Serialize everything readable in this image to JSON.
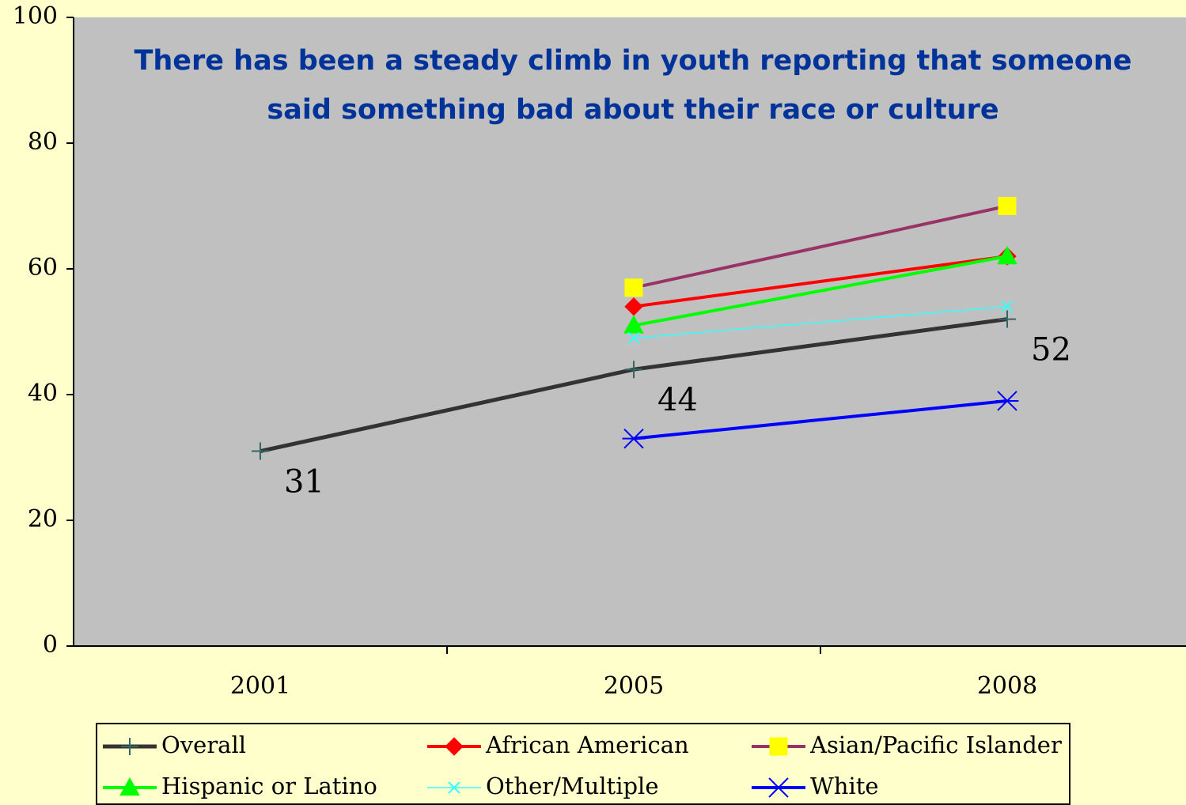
{
  "chart_data": {
    "type": "line",
    "title": "There has been a steady climb in youth reporting that someone said something bad about their race or culture",
    "categories": [
      "2001",
      "2005",
      "2008"
    ],
    "series": [
      {
        "name": "Overall",
        "color": "#333333",
        "marker": "plus",
        "marker_color": "#336666",
        "values": [
          31,
          44,
          52
        ],
        "data_labels": true
      },
      {
        "name": "African American",
        "color": "#ff0000",
        "marker": "diamond",
        "marker_color": "#ff0000",
        "values": [
          null,
          54,
          62
        ]
      },
      {
        "name": "Asian/Pacific Islander",
        "color": "#993366",
        "marker": "square",
        "marker_color": "#ffff00",
        "values": [
          null,
          57,
          70
        ]
      },
      {
        "name": "Hispanic or Latino",
        "color": "#00ff00",
        "marker": "triangle",
        "marker_color": "#00ff00",
        "values": [
          null,
          51,
          62
        ]
      },
      {
        "name": "Other/Multiple",
        "color": "#33ffff",
        "marker": "x",
        "marker_color": "#33ffff",
        "values": [
          null,
          49,
          54
        ]
      },
      {
        "name": "White",
        "color": "#0000ff",
        "marker": "asterisk",
        "marker_color": "#0000ff",
        "values": [
          null,
          33,
          39
        ]
      }
    ],
    "ylim": [
      0,
      100
    ],
    "yticks": [
      0,
      20,
      40,
      60,
      80,
      100
    ],
    "grid": false,
    "legend": "bottom"
  }
}
